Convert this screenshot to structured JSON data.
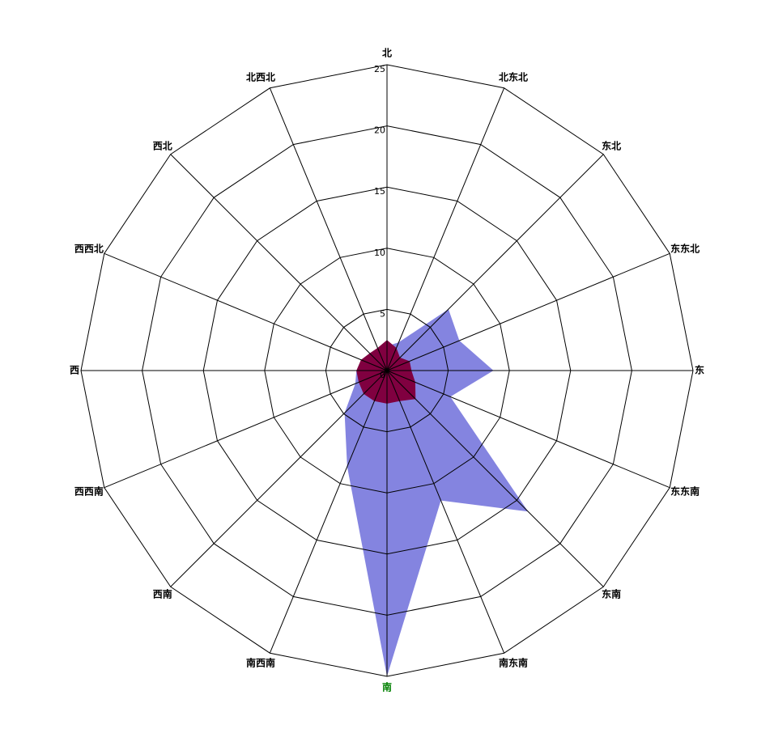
{
  "chart_data": {
    "type": "radar",
    "categories": [
      "北",
      "北东北",
      "东北",
      "东东北",
      "东",
      "东东南",
      "东南",
      "南东南",
      "南",
      "南西南",
      "西南",
      "西西南",
      "西",
      "西西北",
      "西北",
      "北西北"
    ],
    "label_colors": [
      "#000000",
      "#000000",
      "#000000",
      "#000000",
      "#000000",
      "#000000",
      "#000000",
      "#000000",
      "#008000",
      "#000000",
      "#000000",
      "#000000",
      "#000000",
      "#000000",
      "#000000",
      "#000000"
    ],
    "series": [
      {
        "color": "#8484e0",
        "values": [
          2,
          2.5,
          7.1,
          6.4,
          8.7,
          5.6,
          16.3,
          11.5,
          25,
          8.5,
          4.9,
          2.8,
          2.5,
          1,
          1,
          1
        ]
      },
      {
        "color": "#800040",
        "values": [
          2.5,
          2,
          1.5,
          2,
          2,
          2.5,
          3.3,
          2.7,
          2.7,
          2.7,
          2.7,
          2.5,
          2.5,
          2.3,
          2,
          2
        ]
      }
    ],
    "ylim": [
      0,
      25
    ],
    "yticks": [
      0,
      5,
      10,
      15,
      20,
      25
    ],
    "grid": true
  }
}
